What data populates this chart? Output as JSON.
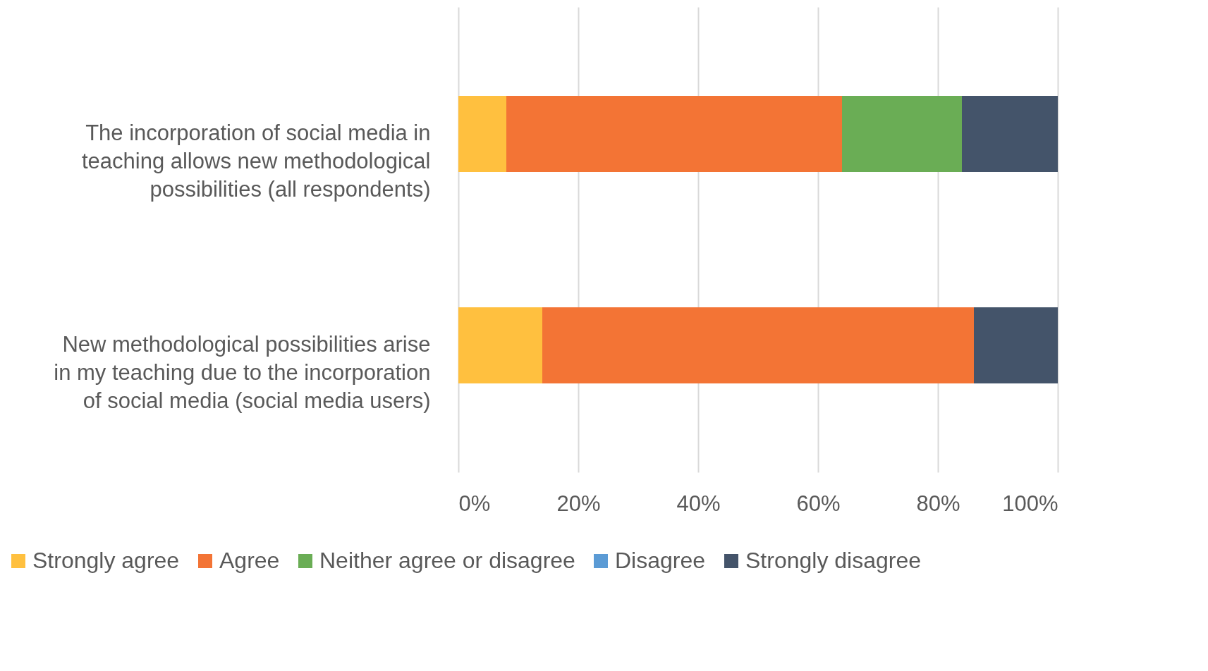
{
  "chart_data": {
    "type": "bar",
    "orientation": "horizontal",
    "stacked": true,
    "categories": [
      "The incorporation of social media in teaching allows new methodological possibilities  (all respondents)",
      "New methodological possibilities  arise in my teaching due to the incorporation of social media (social media users)"
    ],
    "series": [
      {
        "name": "Strongly agree",
        "color": "#ffc03f",
        "values": [
          8,
          14
        ]
      },
      {
        "name": "Agree",
        "color": "#f37435",
        "values": [
          56,
          72
        ]
      },
      {
        "name": "Neither agree or disagree",
        "color": "#6aad55",
        "values": [
          20,
          0
        ]
      },
      {
        "name": "Disagree",
        "color": "#5b9bd5",
        "values": [
          0,
          0
        ]
      },
      {
        "name": "Strongly disagree",
        "color": "#44546a",
        "values": [
          16,
          14
        ]
      }
    ],
    "xlim": [
      0,
      100
    ],
    "xticks": [
      {
        "value": 0,
        "label": "0%"
      },
      {
        "value": 20,
        "label": "20%"
      },
      {
        "value": 40,
        "label": "40%"
      },
      {
        "value": 60,
        "label": "60%"
      },
      {
        "value": 80,
        "label": "80%"
      },
      {
        "value": 100,
        "label": "100%"
      }
    ],
    "grid": "x",
    "legend": "bottom"
  }
}
